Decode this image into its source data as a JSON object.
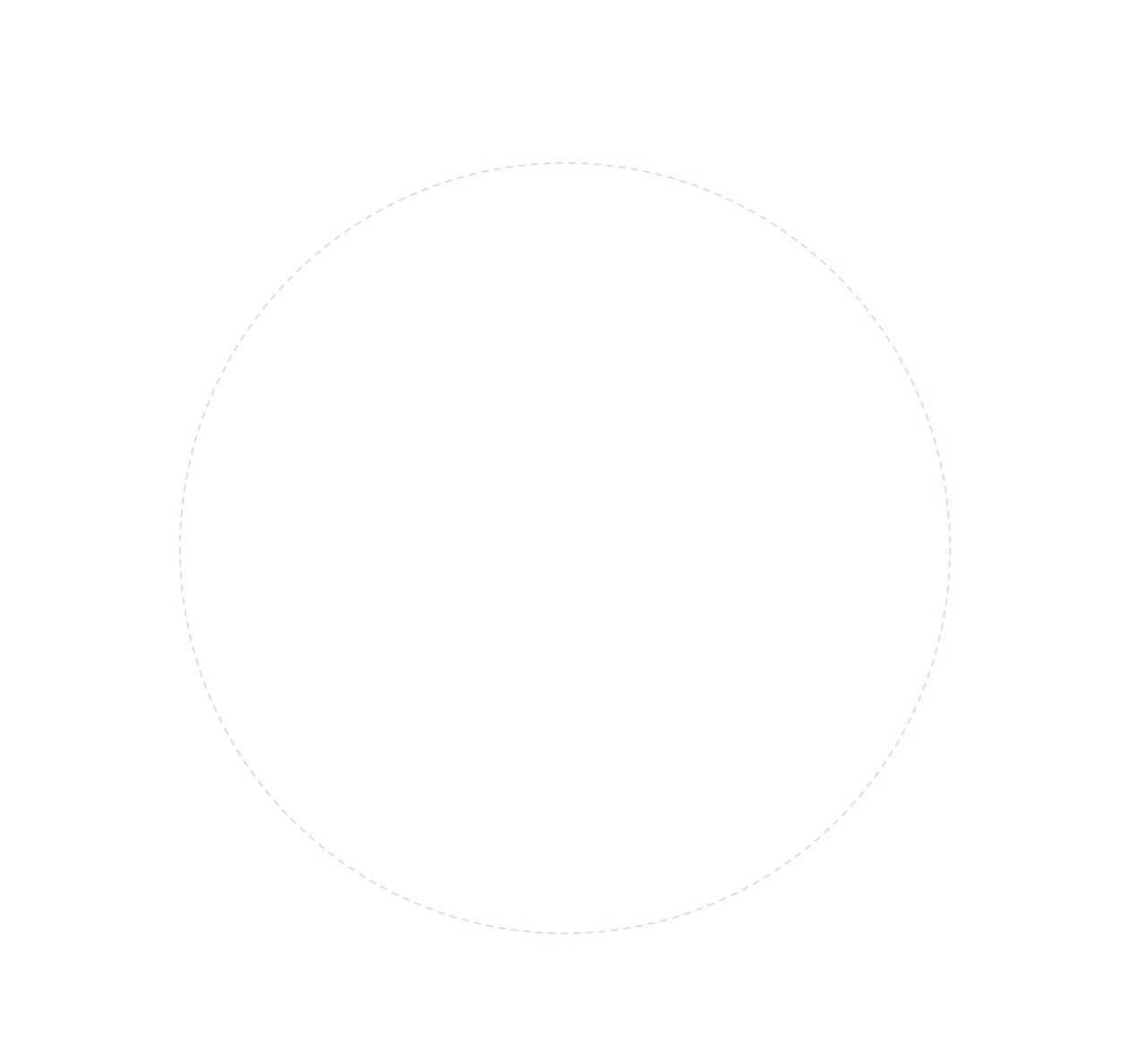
{
  "diagram": {
    "shape": "dashed-circle",
    "colors": {
      "background": "#ffffff",
      "stroke_start": "#d6d0fb",
      "stroke_end": "#f0c6fa"
    }
  }
}
